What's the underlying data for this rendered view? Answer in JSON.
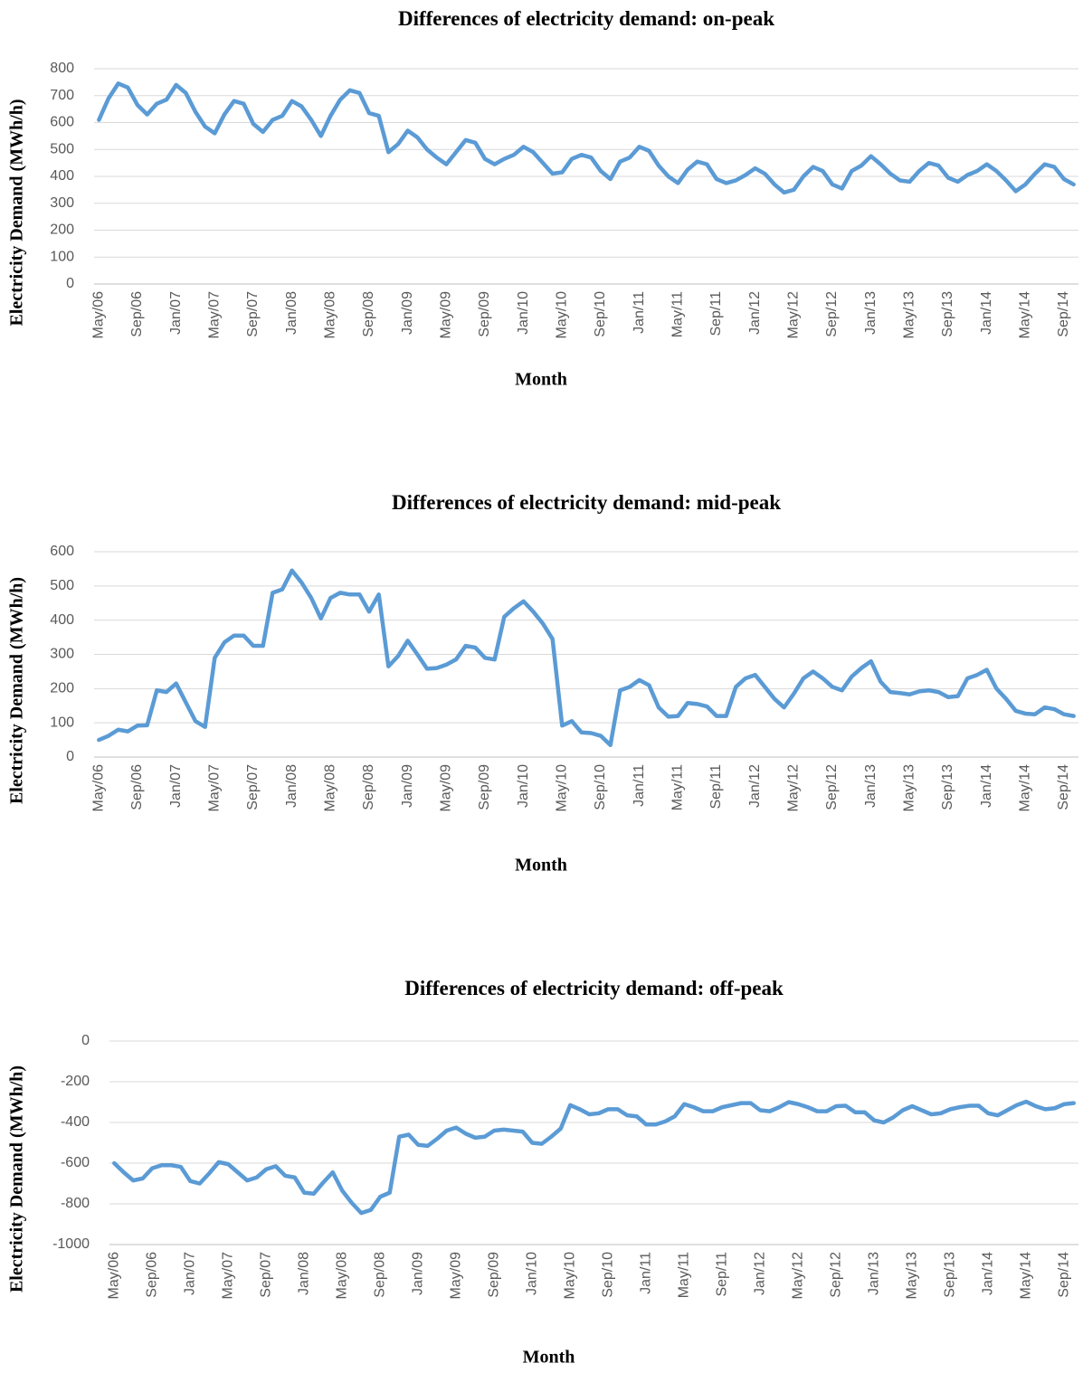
{
  "chart_data": [
    {
      "type": "line",
      "title": "Differences of electricity demand: on-peak",
      "xlabel": "Month",
      "ylabel": "Electricity Demand (MWh/h)",
      "categories": [
        "May/06",
        null,
        null,
        null,
        "Sep/06",
        null,
        null,
        null,
        "Jan/07",
        null,
        null,
        null,
        "May/07",
        null,
        null,
        null,
        "Sep/07",
        null,
        null,
        null,
        "Jan/08",
        null,
        null,
        null,
        "May/08",
        null,
        null,
        null,
        "Sep/08",
        null,
        null,
        null,
        "Jan/09",
        null,
        null,
        null,
        "May/09",
        null,
        null,
        null,
        "Sep/09",
        null,
        null,
        null,
        "Jan/10",
        null,
        null,
        null,
        "May/10",
        null,
        null,
        null,
        "Sep/10",
        null,
        null,
        null,
        "Jan/11",
        null,
        null,
        null,
        "May/11",
        null,
        null,
        null,
        "Sep/11",
        null,
        null,
        null,
        "Jan/12",
        null,
        null,
        null,
        "May/12",
        null,
        null,
        null,
        "Sep/12",
        null,
        null,
        null,
        "Jan/13",
        null,
        null,
        null,
        "May/13",
        null,
        null,
        null,
        "Sep/13",
        null,
        null,
        null,
        "Jan/14",
        null,
        null,
        null,
        "May/14",
        null,
        null,
        null,
        "Sep/14",
        null
      ],
      "values": [
        610,
        690,
        745,
        730,
        665,
        630,
        670,
        685,
        740,
        710,
        640,
        585,
        560,
        630,
        680,
        670,
        595,
        565,
        610,
        625,
        680,
        660,
        610,
        550,
        625,
        685,
        720,
        710,
        635,
        625,
        490,
        520,
        570,
        545,
        500,
        470,
        445,
        490,
        535,
        525,
        465,
        445,
        465,
        480,
        510,
        490,
        450,
        410,
        415,
        465,
        480,
        470,
        420,
        390,
        455,
        470,
        510,
        495,
        440,
        400,
        375,
        425,
        455,
        445,
        390,
        375,
        385,
        405,
        430,
        410,
        370,
        340,
        350,
        400,
        435,
        420,
        370,
        355,
        420,
        440,
        475,
        445,
        410,
        385,
        380,
        420,
        450,
        440,
        395,
        380,
        405,
        420,
        445,
        420,
        385,
        345,
        370,
        410,
        445,
        435,
        390,
        370
      ],
      "color": "#5b9bd5",
      "ylim": [
        0,
        800
      ],
      "yticks": [
        0,
        100,
        200,
        300,
        400,
        500,
        600,
        700,
        800
      ],
      "grid": true
    },
    {
      "type": "line",
      "title": "Differences of electricity demand: mid-peak",
      "xlabel": "Month",
      "ylabel": "Electricity Demand (MWh/h)",
      "categories": [
        "May/06",
        null,
        null,
        null,
        "Sep/06",
        null,
        null,
        null,
        "Jan/07",
        null,
        null,
        null,
        "May/07",
        null,
        null,
        null,
        "Sep/07",
        null,
        null,
        null,
        "Jan/08",
        null,
        null,
        null,
        "May/08",
        null,
        null,
        null,
        "Sep/08",
        null,
        null,
        null,
        "Jan/09",
        null,
        null,
        null,
        "May/09",
        null,
        null,
        null,
        "Sep/09",
        null,
        null,
        null,
        "Jan/10",
        null,
        null,
        null,
        "May/10",
        null,
        null,
        null,
        "Sep/10",
        null,
        null,
        null,
        "Jan/11",
        null,
        null,
        null,
        "May/11",
        null,
        null,
        null,
        "Sep/11",
        null,
        null,
        null,
        "Jan/12",
        null,
        null,
        null,
        "May/12",
        null,
        null,
        null,
        "Sep/12",
        null,
        null,
        null,
        "Jan/13",
        null,
        null,
        null,
        "May/13",
        null,
        null,
        null,
        "Sep/13",
        null,
        null,
        null,
        "Jan/14",
        null,
        null,
        null,
        "May/14",
        null,
        null,
        null,
        "Sep/14",
        null
      ],
      "values": [
        50,
        62,
        80,
        75,
        92,
        93,
        195,
        190,
        215,
        160,
        105,
        88,
        290,
        335,
        355,
        355,
        325,
        325,
        480,
        490,
        545,
        510,
        465,
        405,
        465,
        480,
        475,
        475,
        425,
        475,
        265,
        295,
        340,
        300,
        258,
        260,
        270,
        285,
        325,
        320,
        290,
        285,
        410,
        435,
        455,
        425,
        390,
        345,
        92,
        105,
        72,
        70,
        62,
        35,
        195,
        205,
        225,
        210,
        145,
        118,
        120,
        158,
        155,
        148,
        120,
        120,
        205,
        230,
        240,
        205,
        170,
        145,
        185,
        230,
        250,
        230,
        205,
        195,
        235,
        260,
        280,
        220,
        190,
        187,
        183,
        192,
        195,
        190,
        175,
        178,
        230,
        240,
        255,
        200,
        170,
        135,
        127,
        125,
        145,
        140,
        125,
        120
      ],
      "color": "#5b9bd5",
      "ylim": [
        0,
        600
      ],
      "yticks": [
        0,
        100,
        200,
        300,
        400,
        500,
        600
      ],
      "grid": true
    },
    {
      "type": "line",
      "title": "Differences of electricity demand: off-peak",
      "xlabel": "Month",
      "ylabel": "Electricity Demand (MWh/h)",
      "categories": [
        "May/06",
        null,
        null,
        null,
        "Sep/06",
        null,
        null,
        null,
        "Jan/07",
        null,
        null,
        null,
        "May/07",
        null,
        null,
        null,
        "Sep/07",
        null,
        null,
        null,
        "Jan/08",
        null,
        null,
        null,
        "May/08",
        null,
        null,
        null,
        "Sep/08",
        null,
        null,
        null,
        "Jan/09",
        null,
        null,
        null,
        "May/09",
        null,
        null,
        null,
        "Sep/09",
        null,
        null,
        null,
        "Jan/10",
        null,
        null,
        null,
        "May/10",
        null,
        null,
        null,
        "Sep/10",
        null,
        null,
        null,
        "Jan/11",
        null,
        null,
        null,
        "May/11",
        null,
        null,
        null,
        "Sep/11",
        null,
        null,
        null,
        "Jan/12",
        null,
        null,
        null,
        "May/12",
        null,
        null,
        null,
        "Sep/12",
        null,
        null,
        null,
        "Jan/13",
        null,
        null,
        null,
        "May/13",
        null,
        null,
        null,
        "Sep/13",
        null,
        null,
        null,
        "Jan/14",
        null,
        null,
        null,
        "May/14",
        null,
        null,
        null,
        "Sep/14",
        null
      ],
      "values": [
        -600,
        -645,
        -685,
        -675,
        -625,
        -610,
        -610,
        -618,
        -688,
        -700,
        -650,
        -595,
        -605,
        -645,
        -685,
        -670,
        -630,
        -615,
        -662,
        -670,
        -745,
        -750,
        -695,
        -645,
        -735,
        -795,
        -845,
        -830,
        -765,
        -745,
        -470,
        -460,
        -510,
        -515,
        -480,
        -440,
        -425,
        -455,
        -475,
        -470,
        -440,
        -435,
        -440,
        -445,
        -500,
        -505,
        -470,
        -430,
        -315,
        -335,
        -360,
        -355,
        -335,
        -335,
        -365,
        -370,
        -410,
        -410,
        -395,
        -370,
        -310,
        -325,
        -345,
        -345,
        -325,
        -315,
        -305,
        -305,
        -340,
        -345,
        -325,
        -300,
        -310,
        -325,
        -345,
        -345,
        -320,
        -318,
        -350,
        -350,
        -390,
        -400,
        -375,
        -340,
        -320,
        -340,
        -360,
        -355,
        -335,
        -325,
        -318,
        -318,
        -355,
        -365,
        -340,
        -315,
        -298,
        -320,
        -335,
        -330,
        -310,
        -305
      ],
      "color": "#5b9bd5",
      "ylim": [
        -1000,
        0
      ],
      "yticks": [
        -1000,
        -800,
        -600,
        -400,
        -200,
        0
      ],
      "grid": true
    }
  ]
}
